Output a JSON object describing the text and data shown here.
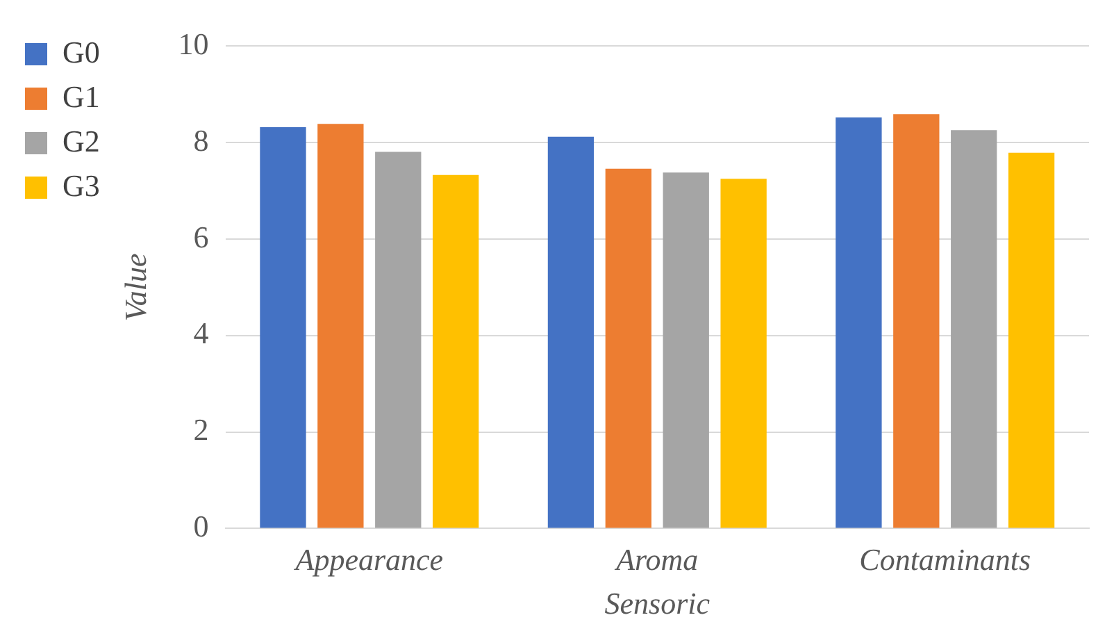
{
  "chart_data": {
    "type": "bar",
    "xlabel": "Sensoric",
    "ylabel": "Value",
    "categories": [
      "Appearance",
      "Aroma",
      "Contaminants"
    ],
    "series": [
      {
        "name": "G0",
        "color": "#4472c4",
        "values": [
          8.32,
          8.12,
          8.52
        ]
      },
      {
        "name": "G1",
        "color": "#ed7d31",
        "values": [
          8.39,
          7.46,
          8.59
        ]
      },
      {
        "name": "G2",
        "color": "#a5a5a5",
        "values": [
          7.81,
          7.38,
          8.26
        ]
      },
      {
        "name": "G3",
        "color": "#ffc000",
        "values": [
          7.33,
          7.25,
          7.79
        ]
      }
    ],
    "ylim": [
      0,
      10
    ],
    "yticks": [
      0,
      2,
      4,
      6,
      8,
      10
    ],
    "grid": "y",
    "legend": "top left"
  }
}
